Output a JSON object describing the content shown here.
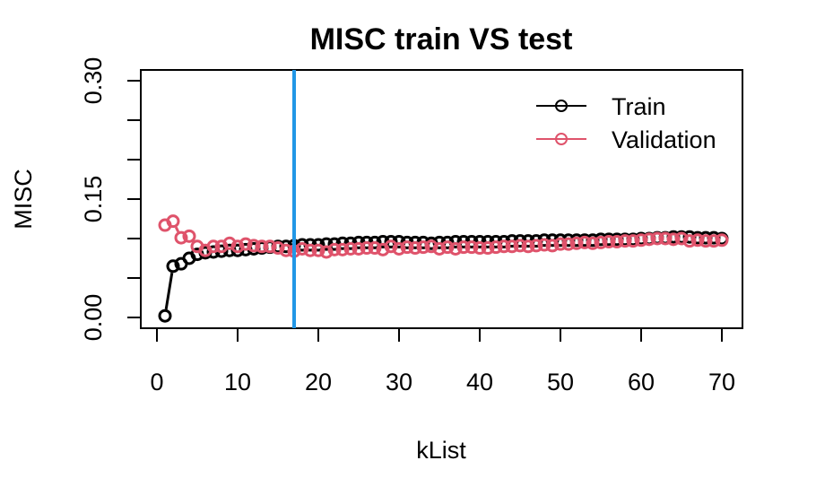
{
  "chart_data": {
    "type": "line",
    "title": "MISC train VS test",
    "xlabel": "kList",
    "ylabel": "MISC",
    "xlim": [
      0,
      70
    ],
    "ylim": [
      0,
      0.3
    ],
    "x_ticks": [
      0,
      10,
      20,
      30,
      40,
      50,
      60,
      70
    ],
    "x_tick_labels": [
      "0",
      "10",
      "20",
      "30",
      "40",
      "50",
      "60",
      "70"
    ],
    "y_ticks": [
      0,
      0.15,
      0.3
    ],
    "y_tick_labels": [
      "0.00",
      "0.15",
      "0.30"
    ],
    "grid": false,
    "legend_position": "top-right",
    "vline": {
      "x": 17,
      "color": "#2297E6"
    },
    "x": [
      1,
      2,
      3,
      4,
      5,
      6,
      7,
      8,
      9,
      10,
      11,
      12,
      13,
      14,
      15,
      16,
      17,
      18,
      19,
      20,
      21,
      22,
      23,
      24,
      25,
      26,
      27,
      28,
      29,
      30,
      31,
      32,
      33,
      34,
      35,
      36,
      37,
      38,
      39,
      40,
      41,
      42,
      43,
      44,
      45,
      46,
      47,
      48,
      49,
      50,
      51,
      52,
      53,
      54,
      55,
      56,
      57,
      58,
      59,
      60,
      61,
      62,
      63,
      64,
      65,
      66,
      67,
      68,
      69,
      70
    ],
    "series": [
      {
        "name": "Train",
        "color": "#000000",
        "values": [
          0.002,
          0.065,
          0.068,
          0.075,
          0.08,
          0.082,
          0.083,
          0.084,
          0.085,
          0.085,
          0.086,
          0.087,
          0.088,
          0.089,
          0.09,
          0.09,
          0.091,
          0.092,
          0.092,
          0.092,
          0.093,
          0.093,
          0.094,
          0.094,
          0.095,
          0.095,
          0.095,
          0.096,
          0.096,
          0.096,
          0.095,
          0.095,
          0.095,
          0.094,
          0.095,
          0.095,
          0.096,
          0.096,
          0.096,
          0.096,
          0.096,
          0.096,
          0.096,
          0.097,
          0.097,
          0.097,
          0.097,
          0.098,
          0.098,
          0.098,
          0.098,
          0.098,
          0.098,
          0.098,
          0.099,
          0.099,
          0.099,
          0.099,
          0.099,
          0.1,
          0.1,
          0.101,
          0.101,
          0.102,
          0.102,
          0.102,
          0.101,
          0.101,
          0.101,
          0.1
        ]
      },
      {
        "name": "Validation",
        "color": "#DF536B",
        "values": [
          0.117,
          0.122,
          0.101,
          0.103,
          0.09,
          0.085,
          0.09,
          0.09,
          0.094,
          0.09,
          0.093,
          0.091,
          0.09,
          0.09,
          0.088,
          0.085,
          0.084,
          0.087,
          0.085,
          0.085,
          0.083,
          0.086,
          0.086,
          0.087,
          0.087,
          0.088,
          0.088,
          0.086,
          0.09,
          0.087,
          0.089,
          0.088,
          0.089,
          0.09,
          0.087,
          0.089,
          0.087,
          0.089,
          0.089,
          0.088,
          0.088,
          0.089,
          0.09,
          0.09,
          0.091,
          0.09,
          0.091,
          0.092,
          0.091,
          0.093,
          0.093,
          0.094,
          0.095,
          0.094,
          0.095,
          0.096,
          0.096,
          0.097,
          0.097,
          0.098,
          0.099,
          0.1,
          0.1,
          0.099,
          0.1,
          0.097,
          0.098,
          0.097,
          0.097,
          0.098
        ]
      }
    ]
  }
}
